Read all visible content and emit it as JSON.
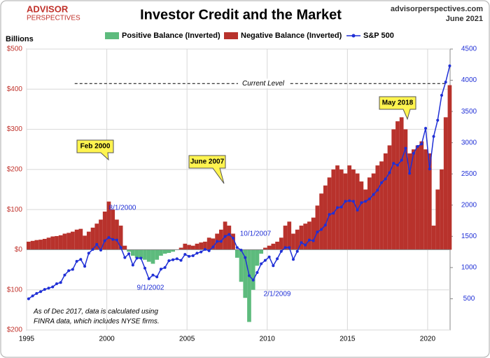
{
  "chart_data": {
    "type": "bar-line",
    "title": "Investor Credit and the Market",
    "logo": [
      "ADVISOR",
      "PERSPECTIVES"
    ],
    "source": "advisorperspectives.com",
    "date": "June 2021",
    "y_label": "Billions",
    "xlim": [
      1995,
      2021.4
    ],
    "xticks": [
      1995,
      2000,
      2005,
      2010,
      2015,
      2020
    ],
    "ylim": [
      -200,
      500
    ],
    "yticks": [
      {
        "value": 500,
        "label": "$500"
      },
      {
        "value": 400,
        "label": "$400"
      },
      {
        "value": 300,
        "label": "$300"
      },
      {
        "value": 200,
        "label": "$200"
      },
      {
        "value": 100,
        "label": "$100"
      },
      {
        "value": 0,
        "label": "$0"
      },
      {
        "value": -100,
        "label": "$100"
      },
      {
        "value": -200,
        "label": "$200"
      }
    ],
    "y2lim": [
      0,
      4500
    ],
    "y2ticks": [
      500,
      1000,
      1500,
      2000,
      2500,
      3000,
      3500,
      4000,
      4500
    ],
    "grid": true,
    "x": [
      1995,
      1995.25,
      1995.5,
      1995.75,
      1996,
      1996.25,
      1996.5,
      1996.75,
      1997,
      1997.25,
      1997.5,
      1997.75,
      1998,
      1998.25,
      1998.5,
      1998.75,
      1999,
      1999.25,
      1999.5,
      1999.75,
      2000,
      2000.25,
      2000.5,
      2000.75,
      2001,
      2001.25,
      2001.5,
      2001.75,
      2002,
      2002.25,
      2002.5,
      2002.75,
      2003,
      2003.25,
      2003.5,
      2003.75,
      2004,
      2004.25,
      2004.5,
      2004.75,
      2005,
      2005.25,
      2005.5,
      2005.75,
      2006,
      2006.25,
      2006.5,
      2006.75,
      2007,
      2007.25,
      2007.5,
      2007.75,
      2008,
      2008.25,
      2008.5,
      2008.75,
      2009,
      2009.25,
      2009.5,
      2009.75,
      2010,
      2010.25,
      2010.5,
      2010.75,
      2011,
      2011.25,
      2011.5,
      2011.75,
      2012,
      2012.25,
      2012.5,
      2012.75,
      2013,
      2013.25,
      2013.5,
      2013.75,
      2014,
      2014.25,
      2014.5,
      2014.75,
      2015,
      2015.25,
      2015.5,
      2015.75,
      2016,
      2016.25,
      2016.5,
      2016.75,
      2017,
      2017.25,
      2017.5,
      2017.75,
      2018,
      2018.25,
      2018.5,
      2018.75,
      2019,
      2019.25,
      2019.5,
      2019.75,
      2020,
      2020.25,
      2020.5,
      2020.75,
      2021,
      2021.25
    ],
    "series": [
      {
        "name": "Positive Balance (Inverted)",
        "color": "#5dbb7d",
        "kind": "bar",
        "values": [
          null,
          null,
          null,
          null,
          null,
          null,
          null,
          null,
          null,
          null,
          null,
          null,
          null,
          null,
          null,
          null,
          null,
          null,
          null,
          null,
          null,
          null,
          null,
          null,
          null,
          -5,
          -15,
          -20,
          -22,
          -25,
          -30,
          -35,
          -25,
          -15,
          -10,
          -8,
          -5,
          null,
          null,
          null,
          null,
          null,
          null,
          null,
          null,
          null,
          null,
          null,
          null,
          null,
          null,
          null,
          -20,
          -80,
          -120,
          -180,
          -100,
          -40,
          -10,
          null,
          null,
          null,
          null,
          null,
          null,
          null,
          null,
          null,
          null,
          null,
          null,
          null,
          null,
          null,
          null,
          null,
          null,
          null,
          null,
          null,
          null,
          null,
          null,
          null,
          null,
          null,
          null,
          null,
          null,
          null,
          null,
          null,
          null,
          null,
          null,
          null,
          null,
          null,
          null,
          null,
          null,
          null,
          null,
          null,
          null,
          null
        ]
      },
      {
        "name": "Negative Balance (Inverted)",
        "color": "#b8322c",
        "kind": "bar",
        "values": [
          20,
          22,
          24,
          25,
          27,
          30,
          33,
          34,
          36,
          40,
          42,
          45,
          50,
          52,
          35,
          45,
          55,
          65,
          75,
          95,
          120,
          100,
          75,
          60,
          10,
          null,
          null,
          null,
          null,
          null,
          null,
          null,
          null,
          null,
          null,
          null,
          null,
          0,
          5,
          15,
          12,
          10,
          15,
          18,
          20,
          30,
          28,
          40,
          50,
          70,
          60,
          40,
          null,
          null,
          null,
          null,
          null,
          null,
          null,
          5,
          10,
          15,
          20,
          30,
          60,
          70,
          40,
          50,
          60,
          65,
          70,
          80,
          110,
          140,
          160,
          180,
          200,
          210,
          200,
          190,
          210,
          200,
          190,
          170,
          150,
          180,
          190,
          210,
          220,
          240,
          260,
          300,
          320,
          330,
          300,
          240,
          250,
          260,
          270,
          250,
          240,
          60,
          150,
          200,
          330,
          410
        ]
      },
      {
        "name": "S&P 500",
        "color": "#1f2fd6",
        "kind": "line",
        "axis": "y2",
        "values": [
          500,
          545,
          585,
          615,
          650,
          670,
          690,
          740,
          760,
          880,
          950,
          970,
          1100,
          1130,
          1020,
          1230,
          1290,
          1370,
          1280,
          1430,
          1480,
          1450,
          1440,
          1320,
          1160,
          1220,
          1040,
          1150,
          1150,
          990,
          820,
          880,
          850,
          975,
          1000,
          1110,
          1125,
          1140,
          1115,
          1210,
          1180,
          1190,
          1230,
          1250,
          1290,
          1270,
          1330,
          1420,
          1420,
          1500,
          1530,
          1470,
          1320,
          1280,
          1160,
          870,
          800,
          920,
          1060,
          1115,
          1170,
          1030,
          1140,
          1260,
          1320,
          1320,
          1130,
          1260,
          1400,
          1360,
          1440,
          1430,
          1570,
          1610,
          1680,
          1850,
          1870,
          1960,
          1970,
          2060,
          2070,
          2060,
          1920,
          2040,
          2060,
          2100,
          2170,
          2240,
          2360,
          2420,
          2520,
          2670,
          2640,
          2720,
          2910,
          2510,
          2830,
          2940,
          2980,
          3230,
          2580,
          3100,
          3360,
          3760,
          3970,
          4230
        ]
      }
    ],
    "reference_line": {
      "value": 414,
      "label": "Current Level"
    },
    "callouts": [
      "Feb 2000",
      "June 2007",
      "May 2018"
    ],
    "point_labels": [
      "8/1/2000",
      "9/1/2002",
      "10/1/2007",
      "2/1/2009"
    ],
    "note": [
      "As of Dec 2017,  data is calculated using",
      "FINRA data, which includes NYSE firms."
    ]
  }
}
